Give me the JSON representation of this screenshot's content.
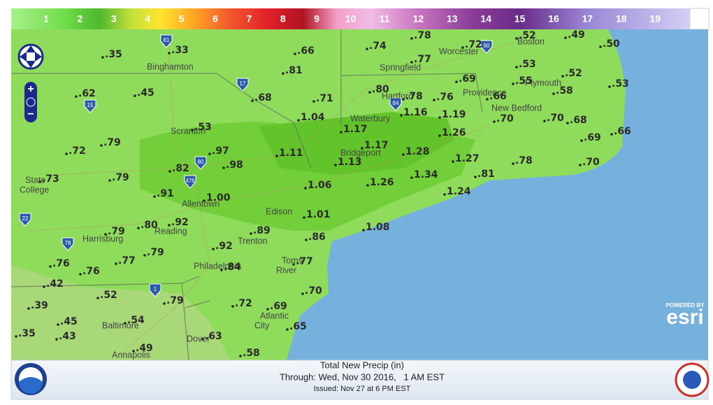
{
  "legend": {
    "values": [
      1,
      2,
      3,
      4,
      5,
      6,
      7,
      8,
      9,
      10,
      11,
      12,
      13,
      14,
      15,
      16,
      17,
      18,
      19
    ]
  },
  "map": {
    "precip_labels": [
      ".35",
      ".33",
      ".66",
      ".74",
      ".78",
      ".72",
      ".52",
      ".49",
      ".50",
      ".81",
      ".77",
      ".53",
      ".52",
      ".53",
      ".55",
      ".58",
      ".62",
      ".45",
      ".68",
      ".71",
      ".80",
      ".78",
      ".76",
      ".69",
      ".66",
      "1.04",
      "1.16",
      "1.19",
      ".53",
      "1.17",
      "1.26",
      ".70",
      ".70",
      ".68",
      ".66",
      ".69",
      ".72",
      ".79",
      ".97",
      "1.11",
      "1.17",
      "1.28",
      "1.27",
      ".78",
      ".70",
      ".73",
      ".82",
      ".98",
      ".79",
      "1.13",
      ".81",
      "1.34",
      "1.06",
      "1.26",
      "1.24",
      ".91",
      "1.00",
      "1.01",
      ".79",
      ".80",
      ".92",
      ".89",
      "1.08",
      ".86",
      ".92",
      ".79",
      ".77",
      ".76",
      ".76",
      ".84",
      ".77",
      ".42",
      ".52",
      ".70",
      ".72",
      ".79",
      ".39",
      ".69",
      ".45",
      ".54",
      ".65",
      ".35",
      ".43",
      ".63",
      ".49",
      ".58"
    ],
    "cities": [
      {
        "lines": [
          "Binghamton"
        ]
      },
      {
        "lines": [
          "Scranton"
        ]
      },
      {
        "lines": [
          "State",
          "College"
        ]
      },
      {
        "lines": [
          "Allentown"
        ]
      },
      {
        "lines": [
          "Reading"
        ]
      },
      {
        "lines": [
          "Harrisburg"
        ]
      },
      {
        "lines": [
          "Philadelphia"
        ]
      },
      {
        "lines": [
          "Trenton"
        ]
      },
      {
        "lines": [
          "Edison"
        ]
      },
      {
        "lines": [
          "Toms",
          "River"
        ]
      },
      {
        "lines": [
          "Atlantic",
          "City"
        ]
      },
      {
        "lines": [
          "Baltimore"
        ]
      },
      {
        "lines": [
          "Annapolis"
        ]
      },
      {
        "lines": [
          "Dover"
        ]
      },
      {
        "lines": [
          "Waterbury"
        ]
      },
      {
        "lines": [
          "Bridgeport"
        ]
      },
      {
        "lines": [
          "Hartford"
        ]
      },
      {
        "lines": [
          "Springfield"
        ]
      },
      {
        "lines": [
          "Worcester"
        ]
      },
      {
        "lines": [
          "Providence"
        ]
      },
      {
        "lines": [
          "New Bedford"
        ]
      },
      {
        "lines": [
          "Plymouth"
        ]
      },
      {
        "lines": [
          "Boston"
        ]
      }
    ],
    "highways": [
      "81",
      "17",
      "15",
      "80",
      "476",
      "78",
      "1",
      "22",
      "84",
      "90"
    ]
  },
  "attribution": {
    "powered_by": "POWERED BY",
    "brand": "esri"
  },
  "footer": {
    "title": "Total New Precip (in)",
    "through": "Through: Wed, Nov 30 2016,   1 AM EST",
    "issued": "Issued: Nov 27 at 6 PM EST"
  }
}
